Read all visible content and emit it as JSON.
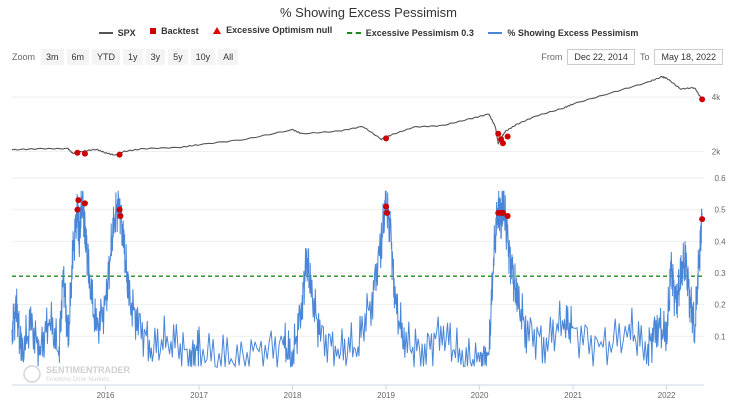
{
  "title": "% Showing Excess Pessimism",
  "legend": [
    {
      "label": "SPX",
      "symbol": "line",
      "color": "#555555"
    },
    {
      "label": "Backtest",
      "symbol": "square",
      "color": "#cc0000"
    },
    {
      "label": "Excessive Optimism null",
      "symbol": "triangle",
      "color": "#e00000"
    },
    {
      "label": "Excessive Pessimism 0.3",
      "symbol": "dash",
      "color": "#1a8a1a"
    },
    {
      "label": "% Showing Excess Pessimism",
      "symbol": "line",
      "color": "#4a86d8"
    }
  ],
  "zoom": {
    "label": "Zoom",
    "buttons": [
      "3m",
      "6m",
      "YTD",
      "1y",
      "3y",
      "5y",
      "10y",
      "All"
    ]
  },
  "range": {
    "from_label": "From",
    "from_value": "Dec 22, 2014",
    "to_label": "To",
    "to_value": "May 18, 2022"
  },
  "watermark": {
    "main": "SENTIMENTRADER",
    "sub": "Emotions Drive Markets"
  },
  "chart_data": [
    {
      "type": "line",
      "name": "SPX",
      "color": "#555555",
      "x_range": [
        2015.0,
        2022.4
      ],
      "ylim": [
        1500,
        5000
      ],
      "y_ticks": [
        {
          "value": 2000,
          "label": "2k"
        },
        {
          "value": 4000,
          "label": "4k"
        }
      ],
      "x": [
        2015.0,
        2015.3,
        2015.6,
        2015.65,
        2015.75,
        2015.9,
        2016.0,
        2016.1,
        2016.2,
        2016.4,
        2016.8,
        2017.0,
        2017.5,
        2018.0,
        2018.1,
        2018.5,
        2018.75,
        2018.95,
        2019.05,
        2019.3,
        2019.6,
        2019.9,
        2020.1,
        2020.17,
        2020.2,
        2020.23,
        2020.28,
        2020.4,
        2020.6,
        2020.9,
        2021.0,
        2021.4,
        2021.8,
        2021.95,
        2022.0,
        2022.15,
        2022.3,
        2022.38
      ],
      "y": [
        2060,
        2100,
        2100,
        1930,
        2000,
        2080,
        1950,
        1860,
        2000,
        2100,
        2150,
        2250,
        2450,
        2800,
        2650,
        2750,
        2920,
        2450,
        2600,
        2900,
        2950,
        3200,
        3380,
        2900,
        2280,
        2500,
        2750,
        3000,
        3300,
        3600,
        3750,
        4150,
        4550,
        4750,
        4700,
        4300,
        4350,
        3900
      ],
      "backtest_points": [
        {
          "x": 2015.7,
          "y": 1950
        },
        {
          "x": 2015.78,
          "y": 1920
        },
        {
          "x": 2016.15,
          "y": 1880
        },
        {
          "x": 2019.0,
          "y": 2480
        },
        {
          "x": 2020.2,
          "y": 2650
        },
        {
          "x": 2020.23,
          "y": 2450
        },
        {
          "x": 2020.25,
          "y": 2300
        },
        {
          "x": 2020.3,
          "y": 2550
        },
        {
          "x": 2022.38,
          "y": 3920
        }
      ]
    },
    {
      "type": "line",
      "name": "% Showing Excess Pessimism",
      "color": "#4a86d8",
      "x_label_ticks": [
        "2016",
        "2017",
        "2018",
        "2019",
        "2020",
        "2021",
        "2022"
      ],
      "x_label_values": [
        2016,
        2017,
        2018,
        2019,
        2020,
        2021,
        2022
      ],
      "ylim": [
        0,
        0.6
      ],
      "y_ticks": [
        {
          "value": 0.1,
          "label": "0.1"
        },
        {
          "value": 0.2,
          "label": "0.2"
        },
        {
          "value": 0.3,
          "label": "0.3"
        },
        {
          "value": 0.4,
          "label": "0.4"
        },
        {
          "value": 0.5,
          "label": "0.5"
        },
        {
          "value": 0.6,
          "label": "0.6"
        }
      ],
      "threshold": {
        "value": 0.29,
        "color": "#1a8a1a"
      },
      "x": [
        2015.0,
        2015.05,
        2015.1,
        2015.2,
        2015.3,
        2015.4,
        2015.5,
        2015.55,
        2015.6,
        2015.65,
        2015.7,
        2015.72,
        2015.75,
        2015.78,
        2015.82,
        2015.9,
        2016.0,
        2016.05,
        2016.1,
        2016.15,
        2016.2,
        2016.25,
        2016.35,
        2016.5,
        2016.7,
        2016.9,
        2017.0,
        2017.3,
        2017.6,
        2017.9,
        2018.0,
        2018.1,
        2018.15,
        2018.2,
        2018.3,
        2018.5,
        2018.7,
        2018.85,
        2018.95,
        2019.0,
        2019.05,
        2019.1,
        2019.2,
        2019.4,
        2019.6,
        2019.8,
        2020.0,
        2020.1,
        2020.15,
        2020.2,
        2020.23,
        2020.26,
        2020.3,
        2020.35,
        2020.4,
        2020.5,
        2020.7,
        2020.9,
        2021.0,
        2021.3,
        2021.6,
        2021.8,
        2021.9,
        2022.0,
        2022.05,
        2022.1,
        2022.15,
        2022.2,
        2022.25,
        2022.3,
        2022.35,
        2022.38
      ],
      "y": [
        0.12,
        0.2,
        0.04,
        0.14,
        0.05,
        0.16,
        0.05,
        0.3,
        0.08,
        0.35,
        0.52,
        0.4,
        0.54,
        0.45,
        0.3,
        0.12,
        0.2,
        0.35,
        0.48,
        0.52,
        0.38,
        0.22,
        0.14,
        0.06,
        0.1,
        0.03,
        0.06,
        0.02,
        0.04,
        0.08,
        0.03,
        0.2,
        0.35,
        0.24,
        0.1,
        0.05,
        0.08,
        0.22,
        0.4,
        0.53,
        0.42,
        0.2,
        0.08,
        0.05,
        0.12,
        0.03,
        0.02,
        0.04,
        0.35,
        0.52,
        0.48,
        0.51,
        0.4,
        0.3,
        0.22,
        0.12,
        0.08,
        0.15,
        0.12,
        0.06,
        0.12,
        0.06,
        0.14,
        0.1,
        0.32,
        0.2,
        0.28,
        0.35,
        0.22,
        0.12,
        0.35,
        0.49
      ],
      "backtest_points": [
        {
          "x": 2015.7,
          "y": 0.5
        },
        {
          "x": 2015.71,
          "y": 0.53
        },
        {
          "x": 2015.78,
          "y": 0.52
        },
        {
          "x": 2016.15,
          "y": 0.5
        },
        {
          "x": 2016.16,
          "y": 0.48
        },
        {
          "x": 2019.0,
          "y": 0.51
        },
        {
          "x": 2019.01,
          "y": 0.49
        },
        {
          "x": 2020.2,
          "y": 0.49
        },
        {
          "x": 2020.23,
          "y": 0.49
        },
        {
          "x": 2020.25,
          "y": 0.49
        },
        {
          "x": 2020.3,
          "y": 0.48
        },
        {
          "x": 2022.38,
          "y": 0.47
        }
      ]
    }
  ]
}
